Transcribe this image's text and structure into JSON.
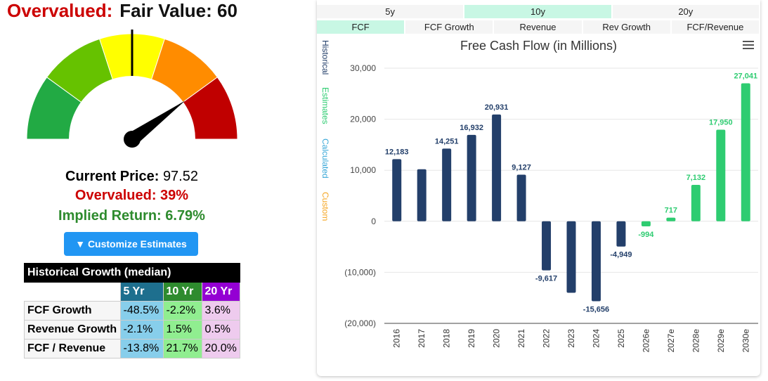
{
  "valuation": {
    "status": "Overvalued:",
    "fair_value_label": "Fair Value: 60",
    "current_price_label": "Current Price:",
    "current_price_value": "97.52",
    "overvalued_text": "Overvalued: 39%",
    "implied_return_text": "Implied Return: 6.79%",
    "customize_button": "▼ Customize Estimates",
    "gauge_needle_fraction": 0.8,
    "gauge_zone_colors": [
      "#22aa44",
      "#66c200",
      "#ffff00",
      "#ff8c00",
      "#c00000"
    ]
  },
  "growth_table": {
    "title": "Historical Growth (median)",
    "headers": [
      "5 Yr",
      "10 Yr",
      "20 Yr"
    ],
    "rows": [
      {
        "label": "FCF Growth",
        "values": [
          "-48.5%",
          "-2.2%",
          "3.6%"
        ]
      },
      {
        "label": "Revenue Growth",
        "values": [
          "-2.1%",
          "1.5%",
          "0.5%"
        ]
      },
      {
        "label": "FCF / Revenue",
        "values": [
          "-13.8%",
          "21.7%",
          "20.0%"
        ]
      }
    ]
  },
  "period_tabs": [
    "5y",
    "10y",
    "20y"
  ],
  "active_period": "10y",
  "metric_tabs": [
    "FCF",
    "FCF Growth",
    "Revenue",
    "Rev Growth",
    "FCF/Revenue"
  ],
  "active_metric": "FCF",
  "series_legend": {
    "historical": "Historical",
    "estimates": "Estimates",
    "calculated": "Calculated",
    "custom": "Custom",
    "colors": {
      "historical": "#233f6a",
      "estimates": "#2ecc71",
      "calculated": "#3aa8d8",
      "custom": "#f5a623"
    }
  },
  "chart_data": {
    "type": "bar",
    "title": "Free Cash Flow (in Millions)",
    "categories": [
      "2016",
      "2017",
      "2018",
      "2019",
      "2020",
      "2021",
      "2022",
      "2023",
      "2024",
      "2025",
      "2026e",
      "2027e",
      "2028e",
      "2029e",
      "2030e"
    ],
    "values": [
      12183,
      10200,
      14251,
      16932,
      20931,
      9127,
      -9617,
      -14000,
      -15656,
      -4949,
      -994,
      717,
      7132,
      17950,
      27041
    ],
    "labels": [
      "12,183",
      "",
      "14,251",
      "16,932",
      "20,931",
      "9,127",
      "-9,617",
      "",
      "-15,656",
      "-4,949",
      "-994",
      "717",
      "7,132",
      "17,950",
      "27,041"
    ],
    "kinds": [
      "historical",
      "historical",
      "historical",
      "historical",
      "historical",
      "historical",
      "historical",
      "historical",
      "historical",
      "historical",
      "estimates",
      "estimates",
      "estimates",
      "estimates",
      "estimates"
    ],
    "yticks": [
      30000,
      20000,
      10000,
      0,
      -10000,
      -20000
    ],
    "ytick_labels": [
      "30,000",
      "20,000",
      "10,000",
      "0",
      "(10,000)",
      "(20,000)"
    ],
    "ylim": [
      -20000,
      30000
    ],
    "grid": true
  }
}
